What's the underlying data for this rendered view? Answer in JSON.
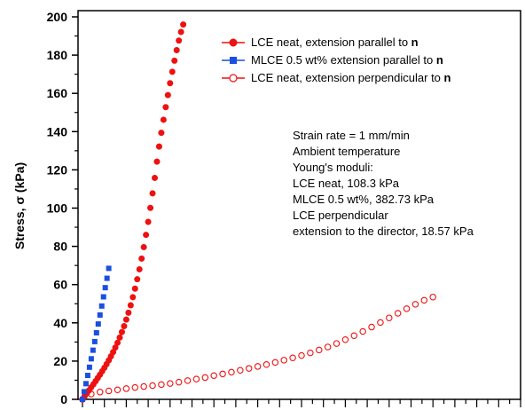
{
  "chart_data": {
    "type": "scatter",
    "title": "",
    "xlabel": "",
    "ylabel": "Stress, σ (kPa)",
    "xlim": [
      0,
      1
    ],
    "ylim": [
      0,
      200
    ],
    "yticks": [
      0,
      20,
      40,
      60,
      80,
      100,
      120,
      140,
      160,
      180,
      200
    ],
    "legend_position": "top-right",
    "grid": false,
    "series": [
      {
        "name": "LCE neat, extension parallel to ",
        "name_bold_suffix": "n",
        "color": "#ee1111",
        "marker": "filled-circle",
        "x": [
          0,
          0.005,
          0.01,
          0.015,
          0.02,
          0.025,
          0.03,
          0.035,
          0.04,
          0.045,
          0.05,
          0.055,
          0.06,
          0.065,
          0.07,
          0.075,
          0.08,
          0.085,
          0.09,
          0.095,
          0.1,
          0.105,
          0.11,
          0.115,
          0.12,
          0.125,
          0.13,
          0.135,
          0.14,
          0.145,
          0.15,
          0.155,
          0.16,
          0.165,
          0.17,
          0.175,
          0.18,
          0.185,
          0.19,
          0.195,
          0.2,
          0.205,
          0.21,
          0.215,
          0.22,
          0.225,
          0.23
        ],
        "y": [
          0,
          1.6,
          3.1,
          4.7,
          6.3,
          7.9,
          9.5,
          11.2,
          12.9,
          14.7,
          16.5,
          18.4,
          20.4,
          22.5,
          24.7,
          27.1,
          29.6,
          32.3,
          35.2,
          38.3,
          41.7,
          45.3,
          49.2,
          53.4,
          57.9,
          62.8,
          68,
          73.6,
          79.6,
          86,
          92.8,
          100.1,
          107.7,
          115.8,
          124.3,
          132.2,
          139.4,
          146.2,
          152.8,
          159.1,
          165.3,
          171.3,
          177.1,
          182.6,
          187.6,
          192.1,
          196
        ]
      },
      {
        "name": "MLCE 0.5 wt% extension parallel to ",
        "name_bold_suffix": "n",
        "color": "#1a4fe0",
        "marker": "filled-square",
        "x": [
          0,
          0.004,
          0.008,
          0.012,
          0.016,
          0.02,
          0.024,
          0.028,
          0.032,
          0.036,
          0.04,
          0.044,
          0.048,
          0.052,
          0.056,
          0.06
        ],
        "y": [
          0,
          4,
          8.2,
          12.5,
          16.8,
          21.2,
          25.7,
          30.2,
          34.8,
          39.4,
          44.1,
          48.8,
          53.6,
          58.4,
          63.3,
          68.5
        ]
      },
      {
        "name": "LCE neat, extension perpendicular to ",
        "name_bold_suffix": "n",
        "color": "#ee1111",
        "marker": "open-circle",
        "x": [
          0,
          0.02,
          0.04,
          0.06,
          0.08,
          0.1,
          0.12,
          0.14,
          0.16,
          0.18,
          0.2,
          0.22,
          0.24,
          0.26,
          0.28,
          0.3,
          0.32,
          0.34,
          0.36,
          0.38,
          0.4,
          0.42,
          0.44,
          0.46,
          0.48,
          0.5,
          0.52,
          0.54,
          0.56,
          0.58,
          0.6,
          0.62,
          0.64,
          0.66,
          0.68,
          0.7,
          0.72,
          0.74,
          0.76,
          0.78,
          0.8
        ],
        "y": [
          0,
          2.8,
          3.8,
          4.4,
          5,
          5.6,
          6.2,
          6.7,
          7.2,
          7.7,
          8.3,
          9,
          9.8,
          10.6,
          11.4,
          12.4,
          13.3,
          14.2,
          15.2,
          16.2,
          17.2,
          18.2,
          19.3,
          20.5,
          21.7,
          22.9,
          24.3,
          25.8,
          27.4,
          29.2,
          31.2,
          33.3,
          35.5,
          37.8,
          40.2,
          42.6,
          45,
          47.4,
          49.7,
          51.8,
          53.5
        ]
      }
    ],
    "annotations": [
      "Strain rate = 1 mm/min",
      "Ambient temperature",
      "Young's moduli:",
      "LCE neat, 108.3 kPa",
      "MLCE 0.5 wt%, 382.73 kPa",
      "LCE perpendicular",
      "extension to the director, 18.57 kPa"
    ]
  }
}
